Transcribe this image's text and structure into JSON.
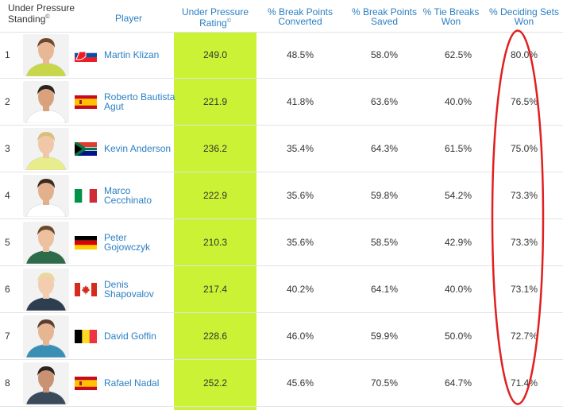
{
  "headers": {
    "standing": "Under Pressure Standing",
    "standing_mark": "©",
    "player": "Player",
    "rating": "Under Pressure Rating",
    "rating_mark": "©",
    "bp_converted": "% Break Points Converted",
    "bp_saved": "% Break Points Saved",
    "tiebreaks": "% Tie Breaks Won",
    "deciding_sets": "% Deciding Sets Won"
  },
  "colors": {
    "rating_highlight": "#ccf235",
    "link": "#2a7fc3",
    "annotation_oval": "#e02020"
  },
  "rows": [
    {
      "rank": "1",
      "name": "Martin Klizan",
      "flag": "slovakia-flag",
      "rating": "249.0",
      "bp_converted": "48.5%",
      "bp_saved": "58.0%",
      "tiebreaks": "62.5%",
      "deciding_sets": "80.0%"
    },
    {
      "rank": "2",
      "name": "Roberto Bautista Agut",
      "flag": "spain-flag",
      "rating": "221.9",
      "bp_converted": "41.8%",
      "bp_saved": "63.6%",
      "tiebreaks": "40.0%",
      "deciding_sets": "76.5%"
    },
    {
      "rank": "3",
      "name": "Kevin Anderson",
      "flag": "south-africa-flag",
      "rating": "236.2",
      "bp_converted": "35.4%",
      "bp_saved": "64.3%",
      "tiebreaks": "61.5%",
      "deciding_sets": "75.0%"
    },
    {
      "rank": "4",
      "name": "Marco Cecchinato",
      "flag": "italy-flag",
      "rating": "222.9",
      "bp_converted": "35.6%",
      "bp_saved": "59.8%",
      "tiebreaks": "54.2%",
      "deciding_sets": "73.3%"
    },
    {
      "rank": "5",
      "name": "Peter Gojowczyk",
      "flag": "germany-flag",
      "rating": "210.3",
      "bp_converted": "35.6%",
      "bp_saved": "58.5%",
      "tiebreaks": "42.9%",
      "deciding_sets": "73.3%"
    },
    {
      "rank": "6",
      "name": "Denis Shapovalov",
      "flag": "canada-flag",
      "rating": "217.4",
      "bp_converted": "40.2%",
      "bp_saved": "64.1%",
      "tiebreaks": "40.0%",
      "deciding_sets": "73.1%"
    },
    {
      "rank": "7",
      "name": "David Goffin",
      "flag": "belgium-flag",
      "rating": "228.6",
      "bp_converted": "46.0%",
      "bp_saved": "59.9%",
      "tiebreaks": "50.0%",
      "deciding_sets": "72.7%"
    },
    {
      "rank": "8",
      "name": "Rafael Nadal",
      "flag": "spain-flag",
      "rating": "252.2",
      "bp_converted": "45.6%",
      "bp_saved": "70.5%",
      "tiebreaks": "64.7%",
      "deciding_sets": "71.4%"
    }
  ]
}
